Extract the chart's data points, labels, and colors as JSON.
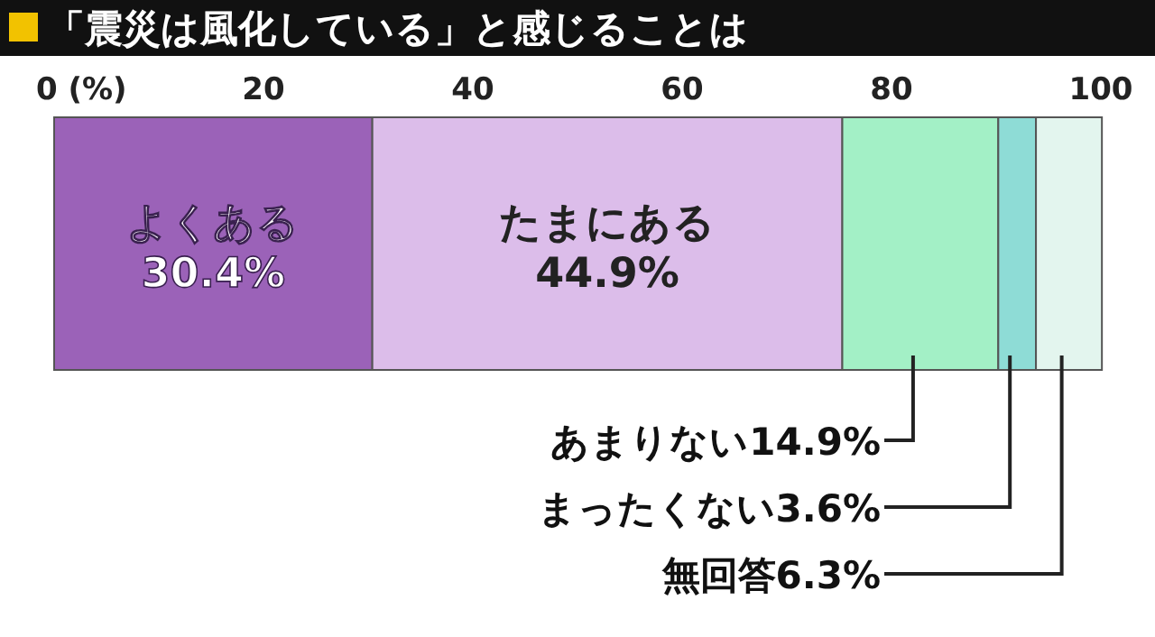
{
  "chart_data": {
    "type": "bar",
    "title": "「震災は風化している」と感じることは",
    "orientation": "horizontal",
    "stacked": true,
    "categories": [
      null
    ],
    "xlim": [
      0,
      100
    ],
    "xticks": [
      {
        "value": 0,
        "label": "0 (%)"
      },
      20,
      40,
      60,
      80,
      100
    ],
    "series": [
      {
        "name": "よくある",
        "color": "#9b62b8",
        "values": [
          30.4
        ],
        "value_labels": [
          "30.4%"
        ]
      },
      {
        "name": "たまにある",
        "color": "#dcbdea",
        "values": [
          44.9
        ],
        "value_labels": [
          "44.9%"
        ]
      },
      {
        "name": "あまりない",
        "color": "#a3f0c6",
        "values": [
          14.9
        ],
        "value_labels": [
          "14.9%"
        ]
      },
      {
        "name": "まったくない",
        "color": "#8edcd6",
        "values": [
          3.6
        ],
        "value_labels": [
          "3.6%"
        ]
      },
      {
        "name": "無回答",
        "color": "#e3f5ee",
        "values": [
          6.3
        ],
        "value_labels": [
          "6.3%"
        ]
      }
    ]
  }
}
